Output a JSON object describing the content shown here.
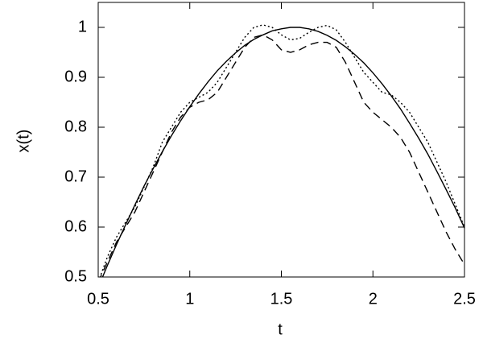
{
  "chart_data": {
    "type": "line",
    "x_label": "t",
    "y_label": "x(t)",
    "x": [
      0.5,
      0.55,
      0.6,
      0.65,
      0.7,
      0.75,
      0.8,
      0.85,
      0.9,
      0.95,
      1.0,
      1.05,
      1.1,
      1.15,
      1.2,
      1.25,
      1.3,
      1.35,
      1.4,
      1.45,
      1.5,
      1.55,
      1.6,
      1.65,
      1.7,
      1.75,
      1.8,
      1.85,
      1.9,
      1.95,
      2.0,
      2.05,
      2.1,
      2.15,
      2.2,
      2.25,
      2.3,
      2.35,
      2.4,
      2.45,
      2.5
    ],
    "series": [
      {
        "color": "#000000",
        "dash": "solid",
        "values": [
          0.479,
          0.523,
          0.565,
          0.605,
          0.644,
          0.682,
          0.717,
          0.751,
          0.783,
          0.813,
          0.841,
          0.867,
          0.891,
          0.913,
          0.932,
          0.949,
          0.964,
          0.976,
          0.985,
          0.993,
          0.997,
          1.0,
          1.0,
          0.997,
          0.992,
          0.984,
          0.974,
          0.961,
          0.946,
          0.929,
          0.909,
          0.887,
          0.863,
          0.837,
          0.808,
          0.778,
          0.746,
          0.711,
          0.675,
          0.638,
          0.598
        ]
      },
      {
        "color": "#000000",
        "dash": "dotted",
        "values": [
          0.49,
          0.54,
          0.58,
          0.61,
          0.64,
          0.68,
          0.72,
          0.77,
          0.8,
          0.83,
          0.85,
          0.86,
          0.87,
          0.89,
          0.92,
          0.95,
          0.98,
          1.0,
          1.005,
          1.0,
          0.985,
          0.975,
          0.978,
          0.99,
          1.0,
          1.004,
          0.995,
          0.97,
          0.94,
          0.91,
          0.89,
          0.87,
          0.865,
          0.85,
          0.83,
          0.8,
          0.77,
          0.73,
          0.69,
          0.645,
          0.6
        ]
      },
      {
        "color": "#000000",
        "dash": "dashed",
        "values": [
          0.49,
          0.53,
          0.57,
          0.6,
          0.63,
          0.67,
          0.71,
          0.75,
          0.79,
          0.82,
          0.84,
          0.85,
          0.855,
          0.87,
          0.9,
          0.93,
          0.96,
          0.98,
          0.985,
          0.975,
          0.955,
          0.95,
          0.955,
          0.965,
          0.97,
          0.97,
          0.96,
          0.93,
          0.89,
          0.85,
          0.83,
          0.815,
          0.8,
          0.78,
          0.75,
          0.71,
          0.67,
          0.63,
          0.59,
          0.555,
          0.525
        ]
      }
    ],
    "xlim": [
      0.5,
      2.5
    ],
    "xticks": [
      0.5,
      1,
      1.5,
      2,
      2.5
    ],
    "ylim": [
      0.5,
      1.05
    ],
    "yticks": [
      0.5,
      0.6,
      0.7,
      0.8,
      0.9,
      1
    ],
    "grid": false
  }
}
